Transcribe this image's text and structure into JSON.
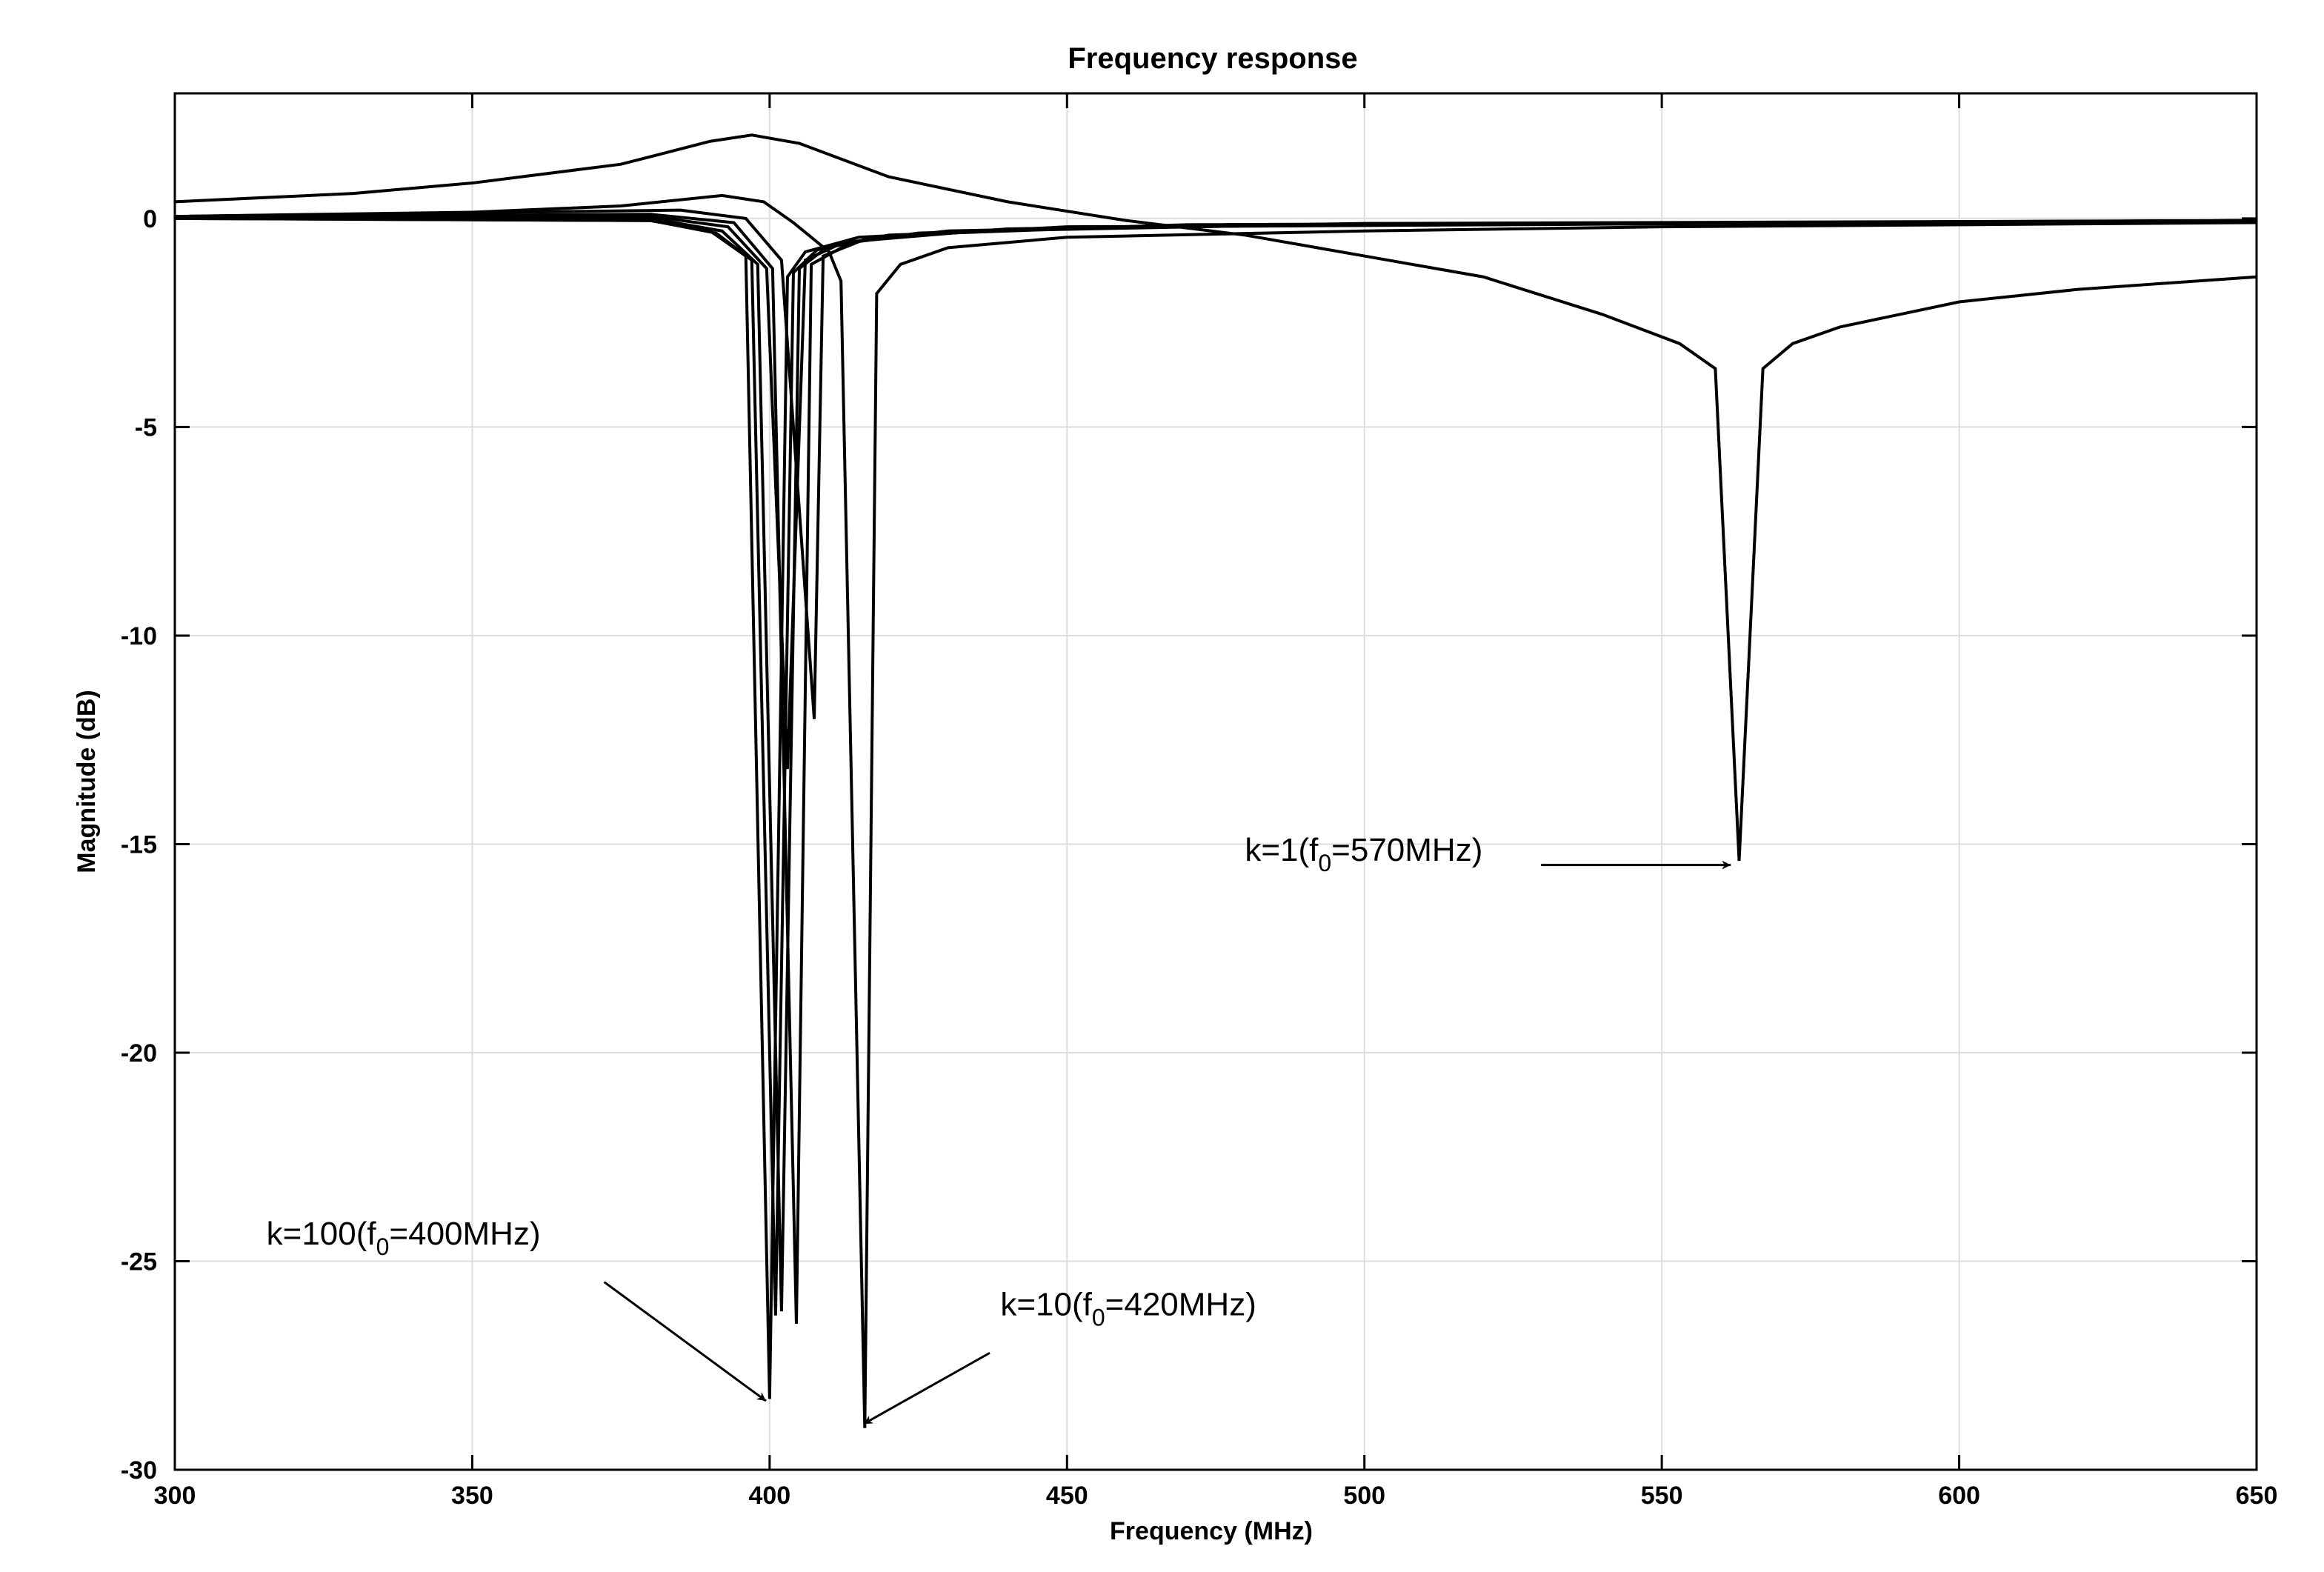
{
  "chart_data": {
    "type": "line",
    "title": "Frequency response",
    "xlabel": "Frequency  (MHz)",
    "ylabel": "Magnitude (dB)",
    "xlim": [
      300,
      650
    ],
    "ylim": [
      -30,
      3
    ],
    "xticks": [
      300,
      350,
      400,
      450,
      500,
      550,
      600,
      650
    ],
    "yticks": [
      0,
      -5,
      -10,
      -15,
      -20,
      -25,
      -30
    ],
    "grid": true,
    "line_color": "#000000",
    "grid_color": "#dddddd",
    "series": [
      {
        "x": [
          300,
          330,
          350,
          375,
          390,
          397,
          405,
          420,
          440,
          460,
          480,
          500,
          520,
          540,
          553,
          559,
          563,
          567,
          572,
          580,
          590,
          600,
          620,
          650
        ],
        "y": [
          0.4,
          0.6,
          0.85,
          1.3,
          1.85,
          2.0,
          1.8,
          1.0,
          0.4,
          -0.05,
          -0.4,
          -0.9,
          -1.4,
          -2.3,
          -3.0,
          -3.6,
          -15.4,
          -3.6,
          -3.0,
          -2.6,
          -2.3,
          -2.0,
          -1.7,
          -1.4
        ]
      },
      {
        "x": [
          300,
          350,
          375,
          392,
          399,
          404,
          410,
          412,
          416,
          418,
          422,
          430,
          450,
          500,
          550,
          650
        ],
        "y": [
          0.05,
          0.15,
          0.3,
          0.55,
          0.4,
          -0.1,
          -0.8,
          -1.5,
          -29.0,
          -1.8,
          -1.1,
          -0.7,
          -0.45,
          -0.3,
          -0.2,
          -0.1
        ]
      },
      {
        "x": [
          300,
          380,
          390,
          396,
          400,
          403,
          406,
          415,
          450,
          650
        ],
        "y": [
          0,
          -0.05,
          -0.3,
          -0.9,
          -28.3,
          -1.4,
          -0.8,
          -0.45,
          -0.2,
          -0.05
        ]
      },
      {
        "x": [
          300,
          380,
          391,
          397,
          401,
          404,
          408,
          420,
          460,
          650
        ],
        "y": [
          0,
          -0.05,
          -0.35,
          -1.0,
          -26.3,
          -1.3,
          -0.75,
          -0.4,
          -0.2,
          -0.05
        ]
      },
      {
        "x": [
          300,
          380,
          392,
          398,
          402,
          405,
          410,
          425,
          470,
          650
        ],
        "y": [
          0.02,
          0.0,
          -0.3,
          -1.1,
          -26.2,
          -1.2,
          -0.65,
          -0.35,
          -0.15,
          -0.05
        ]
      },
      {
        "x": [
          300,
          380,
          393,
          399.5,
          403,
          406,
          412,
          430,
          480,
          650
        ],
        "y": [
          0.03,
          0.05,
          -0.2,
          -1.2,
          -13.2,
          -1.0,
          -0.6,
          -0.3,
          -0.15,
          -0.05
        ]
      },
      {
        "x": [
          300,
          380,
          394,
          400.5,
          404.5,
          407,
          414,
          435,
          490,
          650
        ],
        "y": [
          0.04,
          0.1,
          -0.1,
          -1.2,
          -26.5,
          -1.1,
          -0.55,
          -0.3,
          -0.15,
          -0.05
        ]
      },
      {
        "x": [
          300,
          385,
          396,
          402,
          407.5,
          409,
          416,
          440,
          500,
          650
        ],
        "y": [
          0.05,
          0.2,
          0.0,
          -1.0,
          -12.0,
          -0.9,
          -0.5,
          -0.25,
          -0.12,
          -0.05
        ]
      }
    ],
    "annotations": [
      {
        "pre": "k=100(f",
        "sub": "0",
        "post": "=400MHz)",
        "text_at": [
          315.4,
          -24.6
        ],
        "arrow_from": [
          372.2,
          -25.5
        ],
        "arrow_to": [
          399.4,
          -28.35
        ]
      },
      {
        "pre": "k=10(f",
        "sub": "0",
        "post": "=420MHz)",
        "text_at": [
          438.8,
          -26.3
        ],
        "arrow_from": [
          437.0,
          -27.2
        ],
        "arrow_to": [
          415.8,
          -28.9
        ]
      },
      {
        "pre": "k=1(f",
        "sub": "0",
        "post": "=570MHz)",
        "text_at": [
          479.9,
          -15.4
        ],
        "arrow_from": [
          529.7,
          -15.5
        ],
        "arrow_to": [
          561.6,
          -15.5
        ]
      }
    ]
  }
}
